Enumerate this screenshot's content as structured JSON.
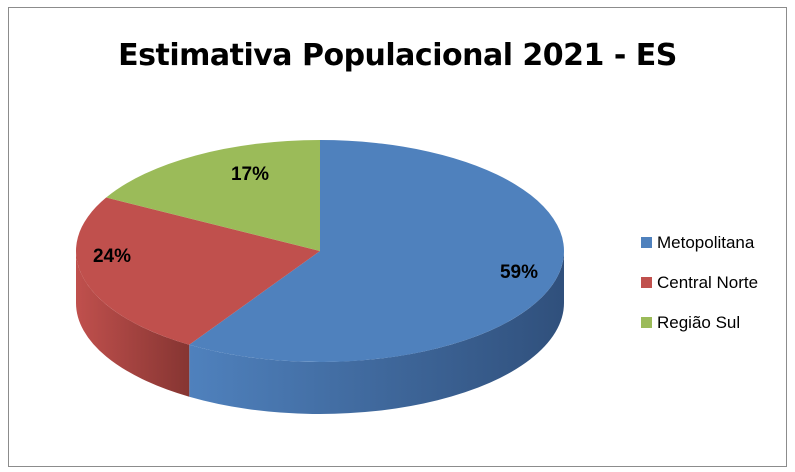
{
  "chart_data": {
    "type": "pie",
    "style": "3d",
    "title": "Estimativa Populacional 2021 - ES",
    "legend_position": "right",
    "slices": [
      {
        "name": "Metopolitana",
        "value": 59,
        "label": "59%",
        "color": "#4f81bd",
        "side_color": "#30507c"
      },
      {
        "name": "Central Norte",
        "value": 24,
        "label": "24%",
        "color": "#c0504d",
        "side_color": "#863532"
      },
      {
        "name": "Região Sul",
        "value": 17,
        "label": "17%",
        "color": "#9bbb59",
        "side_color": "#6a8439"
      }
    ]
  }
}
